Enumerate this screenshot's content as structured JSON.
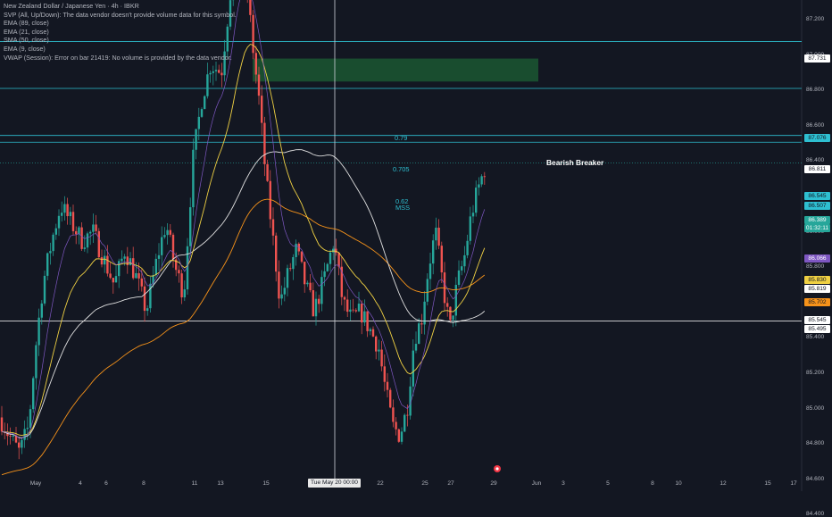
{
  "legend": {
    "symbol": "New Zealand Dollar / Japanese Yen · 4h · IBKR",
    "svp": "SVP (All, Up/Down): The data vendor doesn't provide volume data for this symbol.",
    "ema89": "EMA (89, close)",
    "ema21": "EMA (21, close)",
    "sma50": "SMA (50, close)",
    "ema9": "EMA (9, close)",
    "vwap": "VWAP (Session): Error on bar 21419: No volume is provided by the data vendor."
  },
  "fib": {
    "f79": "0.79",
    "f705": "0.705",
    "f62": "0.62",
    "mss": "MSS"
  },
  "annotation": "Bearish Breaker",
  "crosshair_time": "Tue May 20   00:00",
  "price_labels": {
    "l87731": "87.731",
    "l87076": "87.076",
    "l86811": "86.811",
    "l86545": "86.545",
    "l86507": "86.507",
    "l86389": "86.389",
    "countdown": "01:32:11",
    "l86066": "86.066",
    "l85830": "85.830",
    "l85819": "85.819",
    "l85702": "85.702",
    "l85545": "85.545",
    "l85495": "85.495"
  },
  "y_ticks": [
    "88.200",
    "88.000",
    "87.800",
    "87.600",
    "87.400",
    "87.200",
    "87.000",
    "86.800",
    "86.600",
    "86.400",
    "86.200",
    "86.000",
    "85.800",
    "85.600",
    "85.400",
    "85.200",
    "85.000",
    "84.800",
    "84.600",
    "84.400"
  ],
  "x_ticks": [
    "May",
    "4",
    "6",
    "8",
    "11",
    "13",
    "15",
    "22",
    "25",
    "27",
    "29",
    "Jun",
    "3",
    "5",
    "8",
    "10",
    "12",
    "15",
    "17"
  ],
  "colors": {
    "background": "#131722",
    "up": "#26a69a",
    "down": "#ef5350",
    "ema89": "#f7931a",
    "ema21": "#f0d143",
    "sma50": "#e0e0e0",
    "ema9": "#7e57c2",
    "fib": "#2ebfd1",
    "breaker": "#1f7a3a"
  },
  "chart_data": {
    "type": "candlestick",
    "ylim": [
      84.35,
      88.25
    ],
    "levels": {
      "fib_079": 87.076,
      "fib_0705": 86.811,
      "fib_062": 86.545,
      "mss": 86.507,
      "current": 86.389,
      "high_line": 87.731,
      "low_line": 85.495
    },
    "breaker_zone": [
      86.85,
      86.98
    ]
  }
}
